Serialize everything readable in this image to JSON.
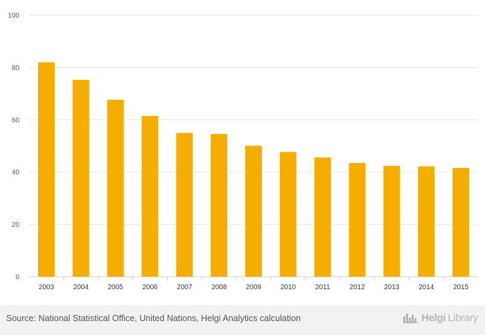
{
  "chart_data": {
    "type": "bar",
    "categories": [
      "2003",
      "2004",
      "2005",
      "2006",
      "2007",
      "2008",
      "2009",
      "2010",
      "2011",
      "2012",
      "2013",
      "2014",
      "2015"
    ],
    "values": [
      82.0,
      75.3,
      67.7,
      61.5,
      55.0,
      54.6,
      50.1,
      47.7,
      45.6,
      43.5,
      42.4,
      42.2,
      41.6
    ],
    "ylim": [
      0,
      100
    ],
    "yticks": [
      0,
      20,
      40,
      60,
      80,
      100
    ],
    "title": "",
    "xlabel": "",
    "ylabel": "",
    "grid": true,
    "bar_color": "#f5ad00"
  },
  "footer": {
    "source": "Source: National Statistical Office, United Nations, Helgi Analytics calculation",
    "logo_main": "Helgi",
    "logo_sub": "Library"
  }
}
